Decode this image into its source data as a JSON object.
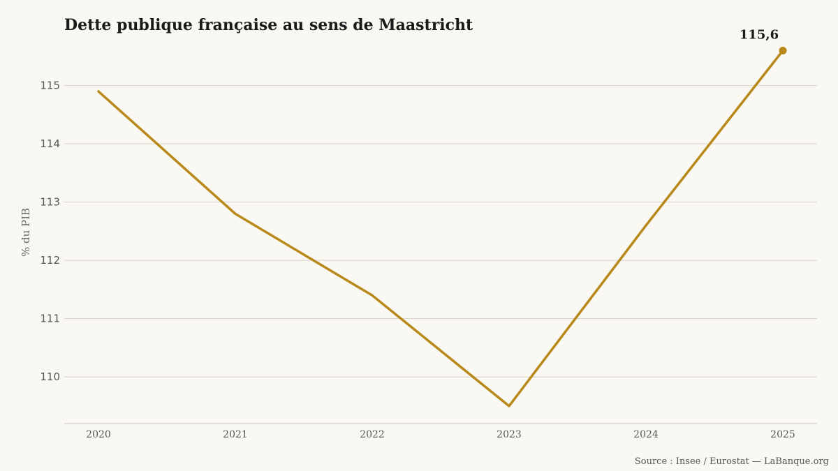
{
  "chart_data": {
    "type": "line",
    "title": "Dette publique française au sens de Maastricht",
    "ylabel": "% du PIB",
    "xlabel": "",
    "x": [
      "2020",
      "2021",
      "2022",
      "2023",
      "2024",
      "2025"
    ],
    "series": [
      {
        "values": [
          114.9,
          112.8,
          111.4,
          109.5,
          112.6,
          115.6
        ],
        "color": "#B8891A"
      }
    ],
    "ylim": [
      109.2,
      115.75
    ],
    "yticks": [
      110,
      111,
      112,
      113,
      114,
      115
    ],
    "ytick_labels": [
      "110",
      "111",
      "112",
      "113",
      "114",
      "115"
    ],
    "grid": true,
    "annotation": {
      "text": "115,6",
      "x": "2025",
      "y": 115.6
    },
    "source": "Source : Insee / Eurostat — LaBanque.org",
    "colors": {
      "line": "#B8891A",
      "background": "#FAF8F2",
      "grid": "#D6D2C6",
      "axis": "#C9C4B8"
    }
  }
}
